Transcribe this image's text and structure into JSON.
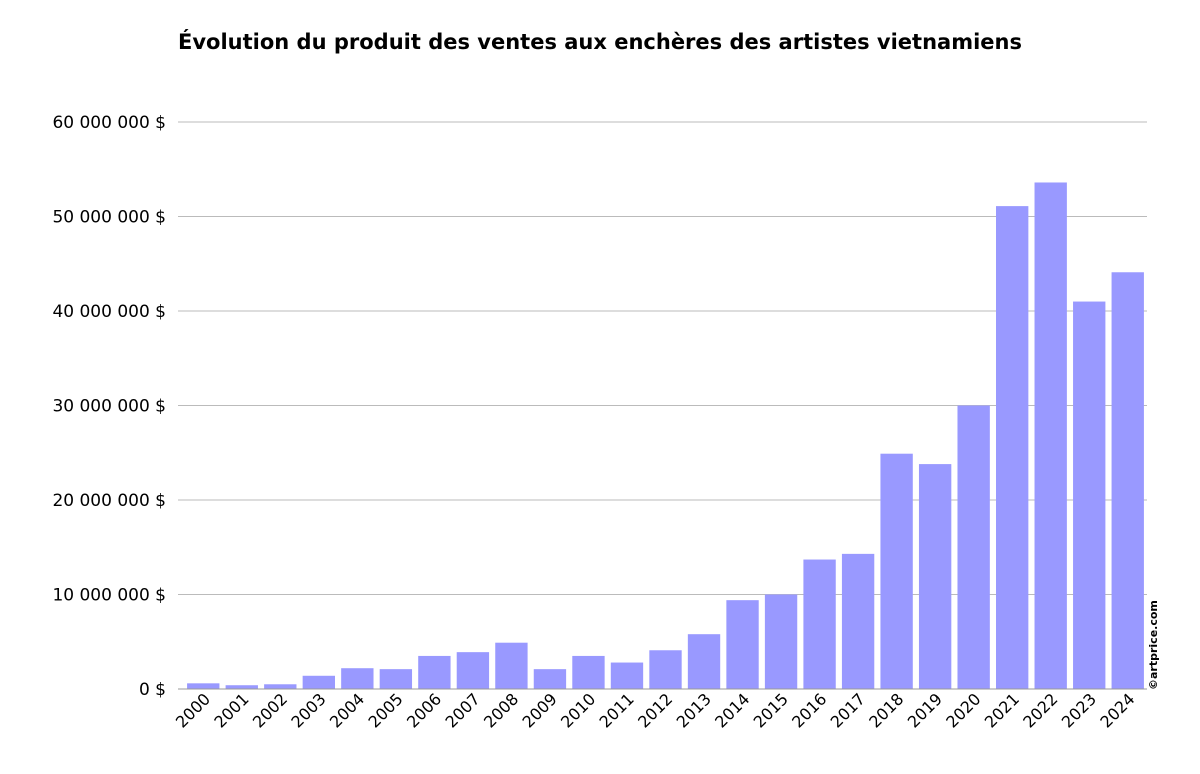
{
  "chart_data": {
    "type": "bar",
    "title": "Évolution du produit des ventes aux enchères des artistes vietnamiens",
    "categories": [
      "2000",
      "2001",
      "2002",
      "2003",
      "2004",
      "2005",
      "2006",
      "2007",
      "2008",
      "2009",
      "2010",
      "2011",
      "2012",
      "2013",
      "2014",
      "2015",
      "2016",
      "2017",
      "2018",
      "2019",
      "2020",
      "2021",
      "2022",
      "2023",
      "2024"
    ],
    "values": [
      600000,
      400000,
      500000,
      1400000,
      2200000,
      2100000,
      3500000,
      3900000,
      4900000,
      2100000,
      3500000,
      2800000,
      4100000,
      5800000,
      9400000,
      10000000,
      13700000,
      14300000,
      24900000,
      23800000,
      30000000,
      51100000,
      53600000,
      41000000,
      44100000
    ],
    "ylim": [
      0,
      60000000
    ],
    "yticks": [
      0,
      10000000,
      20000000,
      30000000,
      40000000,
      50000000,
      60000000
    ],
    "ytick_labels": [
      "0 $",
      "10 000 000 $",
      "20 000 000 $",
      "30 000 000 $",
      "40 000 000 $",
      "50 000 000 $",
      "60 000 000 $"
    ],
    "xlabel": "",
    "ylabel": "",
    "grid": true,
    "bar_color": "#9999ff",
    "credit": "©artprice.com"
  }
}
